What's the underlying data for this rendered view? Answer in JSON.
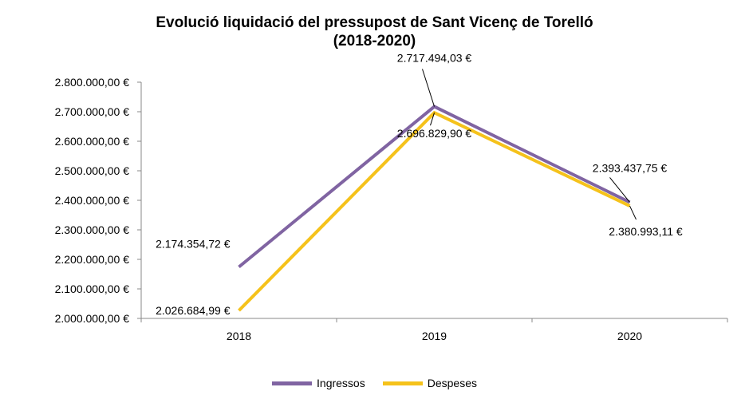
{
  "chart_data": {
    "type": "line",
    "title": "Evolució liquidació del pressupost de Sant Vicenç de Torelló",
    "subtitle": "(2018-2020)",
    "categories": [
      "2018",
      "2019",
      "2020"
    ],
    "series": [
      {
        "name": "Ingressos",
        "color": "#8064A2",
        "values": [
          2174354.72,
          2717494.03,
          2393437.75
        ],
        "labels": [
          "2.174.354,72 €",
          "2.717.494,03 €",
          "2.393.437,75 €"
        ]
      },
      {
        "name": "Despeses",
        "color": "#F5C21B",
        "values": [
          2026684.99,
          2696829.9,
          2380993.11
        ],
        "labels": [
          "2.026.684,99 €",
          "2.696.829,90 €",
          "2.380.993,11 €"
        ]
      }
    ],
    "ylim": [
      2000000,
      2800000
    ],
    "yticks": [
      2000000,
      2100000,
      2200000,
      2300000,
      2400000,
      2500000,
      2600000,
      2700000,
      2800000
    ],
    "ytick_labels": [
      "2.000.000,00 €",
      "2.100.000,00 €",
      "2.200.000,00 €",
      "2.300.000,00 €",
      "2.400.000,00 €",
      "2.500.000,00 €",
      "2.600.000,00 €",
      "2.700.000,00 €",
      "2.800.000,00 €"
    ],
    "xlabel": "",
    "ylabel": "",
    "grid": false,
    "legend": "bottom"
  }
}
